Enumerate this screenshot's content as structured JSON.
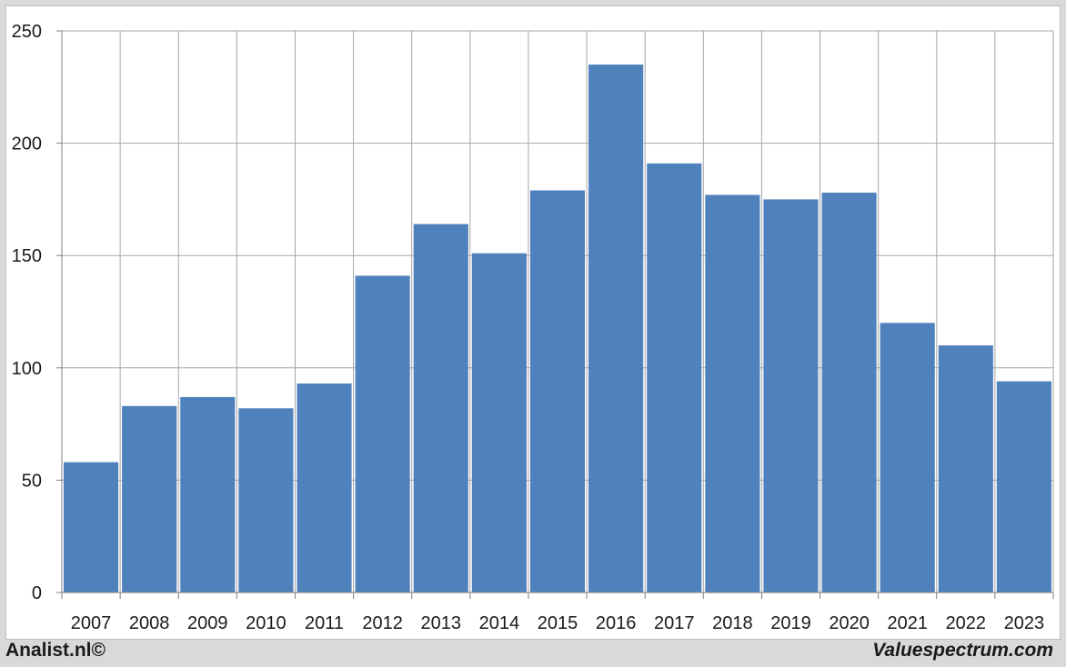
{
  "chart_data": {
    "type": "bar",
    "title": "",
    "xlabel": "",
    "ylabel": "",
    "categories": [
      "2007",
      "2008",
      "2009",
      "2010",
      "2011",
      "2012",
      "2013",
      "2014",
      "2015",
      "2016",
      "2017",
      "2018",
      "2019",
      "2020",
      "2021",
      "2022",
      "2023"
    ],
    "values": [
      58,
      83,
      87,
      82,
      93,
      141,
      164,
      151,
      179,
      235,
      191,
      177,
      175,
      178,
      120,
      110,
      94
    ],
    "ylim": [
      0,
      250
    ],
    "yticks": [
      0,
      50,
      100,
      150,
      200,
      250
    ],
    "grid": true,
    "legend": "none",
    "bar_color": "#4f81bd"
  },
  "footer": {
    "left": "Analist.nl©",
    "right": "Valuespectrum.com"
  }
}
